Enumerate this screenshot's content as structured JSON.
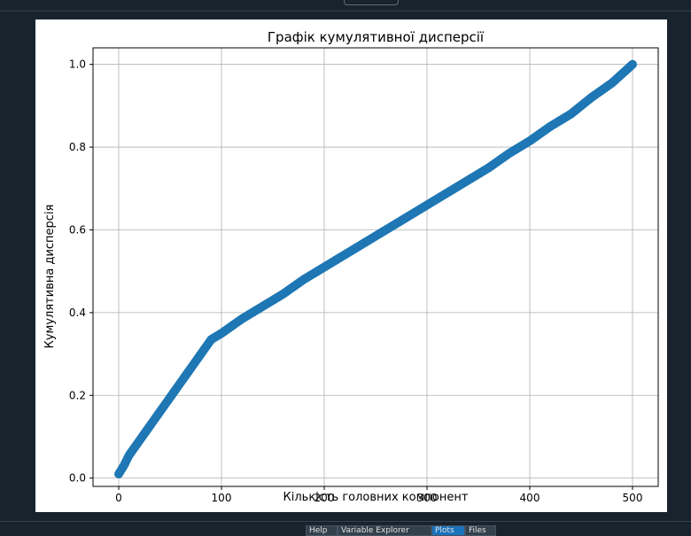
{
  "bottom_tabs": [
    {
      "label": "Help",
      "active": false
    },
    {
      "label": "Variable Explorer",
      "active": false
    },
    {
      "label": "Plots",
      "active": true
    },
    {
      "label": "Files",
      "active": false
    }
  ],
  "chart_data": {
    "type": "scatter",
    "title": "Графік кумулятивної дисперсії",
    "xlabel": "Кількість головних компонент",
    "ylabel": "Кумулятивна дисперсія",
    "xlim": [
      -25,
      525
    ],
    "ylim": [
      -0.02,
      1.04
    ],
    "xticks": [
      0,
      100,
      200,
      300,
      400,
      500
    ],
    "yticks": [
      0.0,
      0.2,
      0.4,
      0.6,
      0.8,
      1.0
    ],
    "xtick_labels": [
      "0",
      "100",
      "200",
      "300",
      "400",
      "500"
    ],
    "ytick_labels": [
      "0.0",
      "0.2",
      "0.4",
      "0.6",
      "0.8",
      "1.0"
    ],
    "grid": true,
    "marker_color": "#1f77b4",
    "x": [
      0,
      5,
      10,
      20,
      30,
      40,
      50,
      60,
      70,
      80,
      90,
      100,
      120,
      140,
      160,
      180,
      200,
      220,
      240,
      260,
      280,
      300,
      320,
      340,
      360,
      380,
      400,
      420,
      440,
      460,
      480,
      500
    ],
    "y": [
      0.01,
      0.03,
      0.055,
      0.09,
      0.125,
      0.16,
      0.195,
      0.23,
      0.265,
      0.3,
      0.335,
      0.35,
      0.385,
      0.415,
      0.445,
      0.48,
      0.51,
      0.54,
      0.57,
      0.6,
      0.63,
      0.66,
      0.69,
      0.72,
      0.75,
      0.785,
      0.815,
      0.85,
      0.88,
      0.92,
      0.955,
      1.0
    ]
  }
}
